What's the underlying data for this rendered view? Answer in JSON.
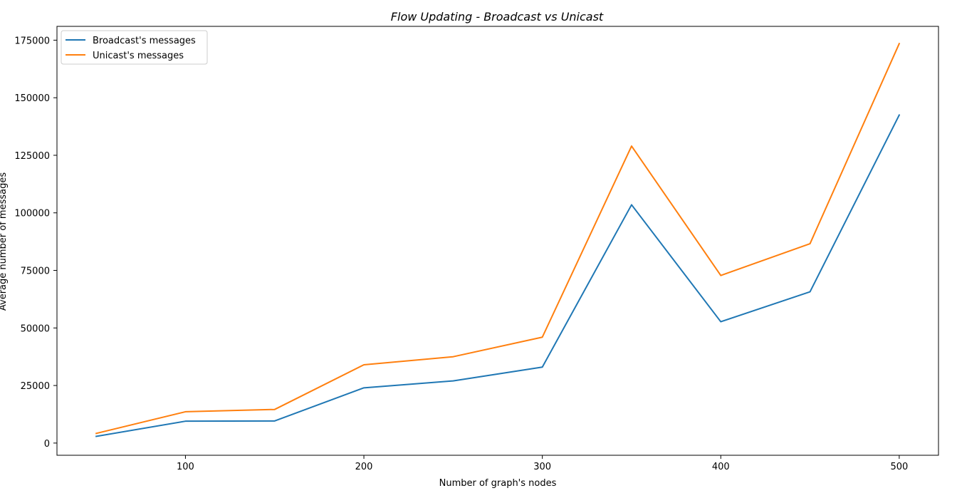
{
  "chart_data": {
    "type": "line",
    "title": "Flow Updating - Broadcast vs Unicast",
    "xlabel": "Number of graph's nodes",
    "ylabel": "Average number of messages",
    "x": [
      50,
      100,
      150,
      200,
      250,
      300,
      350,
      400,
      450,
      500
    ],
    "xlim": [
      28,
      522
    ],
    "ylim": [
      -5300,
      181000
    ],
    "xticks": [
      100,
      200,
      300,
      400,
      500
    ],
    "yticks": [
      0,
      25000,
      50000,
      75000,
      100000,
      125000,
      150000,
      175000
    ],
    "legend_position": "top-left",
    "grid": false,
    "series": [
      {
        "name": "Broadcast's messages",
        "color": "#1f77b4",
        "values": [
          2900,
          9500,
          9600,
          24000,
          27000,
          33000,
          103500,
          52700,
          65700,
          142500
        ]
      },
      {
        "name": "Unicast's messages",
        "color": "#ff7f0e",
        "values": [
          4200,
          13600,
          14600,
          34000,
          37500,
          46000,
          129000,
          72800,
          86600,
          173500
        ]
      }
    ]
  }
}
